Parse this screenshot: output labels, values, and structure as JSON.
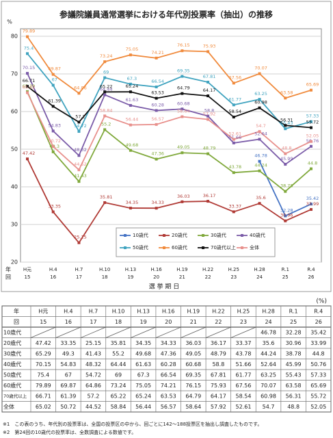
{
  "chart_data": {
    "type": "line",
    "title": "参議院議員通常選挙における年代別投票率（抽出）の推移",
    "y_unit": "%",
    "x_label": "選 挙 期 日",
    "x_row_labels": [
      "年",
      "回"
    ],
    "categories": [
      "H元",
      "H.4",
      "H.7",
      "H.10",
      "H.13",
      "H.16",
      "H.19",
      "H.22",
      "H.25",
      "H.28",
      "R.1",
      "R.4"
    ],
    "rounds": [
      15,
      16,
      17,
      18,
      19,
      20,
      21,
      22,
      23,
      24,
      25,
      26
    ],
    "ylim": [
      20,
      82
    ],
    "yticks": [
      20,
      30,
      40,
      50,
      60,
      70,
      80
    ],
    "grid": true,
    "series": [
      {
        "name": "10歳代",
        "color": "#4472c4",
        "values": [
          null,
          null,
          null,
          null,
          null,
          null,
          null,
          null,
          null,
          46.78,
          32.28,
          35.42
        ]
      },
      {
        "name": "20歳代",
        "color": "#b03a35",
        "values": [
          47.42,
          33.35,
          25.15,
          35.81,
          34.35,
          34.33,
          36.03,
          36.17,
          33.37,
          35.6,
          30.96,
          33.99
        ]
      },
      {
        "name": "30歳代",
        "color": "#7fa83a",
        "values": [
          65.29,
          49.3,
          41.43,
          55.2,
          49.68,
          47.36,
          49.05,
          48.79,
          43.78,
          44.24,
          38.78,
          44.8
        ]
      },
      {
        "name": "40歳代",
        "color": "#7a5ba8",
        "values": [
          70.15,
          54.83,
          48.32,
          64.44,
          61.63,
          60.28,
          60.68,
          58.8,
          51.66,
          52.64,
          45.99,
          50.76
        ]
      },
      {
        "name": "50歳代",
        "color": "#3fa3bf",
        "values": [
          75.4,
          67.0,
          54.72,
          69.0,
          67.3,
          66.54,
          69.35,
          67.81,
          61.77,
          63.25,
          55.43,
          57.33
        ]
      },
      {
        "name": "60歳代",
        "color": "#f08a3c",
        "values": [
          79.89,
          69.87,
          64.86,
          73.24,
          75.05,
          74.21,
          76.15,
          75.93,
          67.56,
          70.07,
          63.58,
          65.69
        ]
      },
      {
        "name": "70歳代以上",
        "color": "#111111",
        "values": [
          66.71,
          61.39,
          57.2,
          65.22,
          65.24,
          63.53,
          64.79,
          64.17,
          58.54,
          60.98,
          56.31,
          55.72
        ]
      },
      {
        "name": "全体",
        "color": "#e8908c",
        "values": [
          65.02,
          50.72,
          44.52,
          58.84,
          56.44,
          56.57,
          58.64,
          57.92,
          52.61,
          54.7,
          48.8,
          52.05
        ]
      }
    ]
  },
  "table": {
    "unit": "(%)",
    "notes": [
      "※1　この表のうち、年代別の投票率は、全国の投票区の中から、回ごとに142～188投票区を抽出し調査したものです。",
      "※2　第24回の10歳代の投票率は、全数調査による数値です。"
    ]
  }
}
